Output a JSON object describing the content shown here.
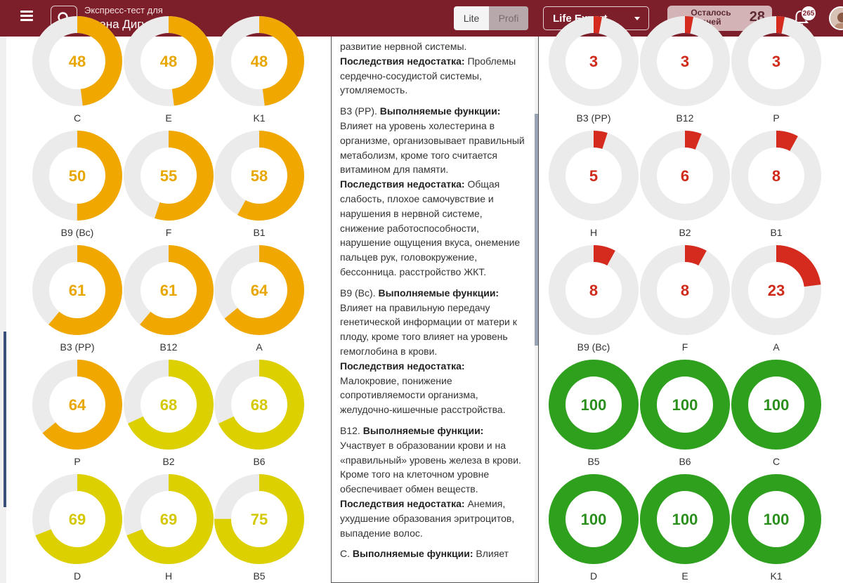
{
  "header": {
    "subtitle": "Экспресс-тест для",
    "user_name": "Елена Дигурова",
    "mode_lite": "Lite",
    "mode_profi": "Profi",
    "plan": "Life Expert",
    "days_label": "Осталось дней",
    "days_value": "28",
    "notifications": "265"
  },
  "left_gauges": [
    {
      "value": 48,
      "label": "C"
    },
    {
      "value": 48,
      "label": "E"
    },
    {
      "value": 48,
      "label": "K1"
    },
    {
      "value": 50,
      "label": "B9 (Bc)"
    },
    {
      "value": 55,
      "label": "F"
    },
    {
      "value": 58,
      "label": "B1"
    },
    {
      "value": 61,
      "label": "B3 (PP)"
    },
    {
      "value": 61,
      "label": "B12"
    },
    {
      "value": 64,
      "label": "A"
    },
    {
      "value": 64,
      "label": "P"
    },
    {
      "value": 68,
      "label": "B2"
    },
    {
      "value": 68,
      "label": "B6"
    },
    {
      "value": 69,
      "label": "D"
    },
    {
      "value": 69,
      "label": "H"
    },
    {
      "value": 75,
      "label": "B5"
    }
  ],
  "right_gauges": [
    {
      "value": 3,
      "label": "B3 (PP)"
    },
    {
      "value": 3,
      "label": "B12"
    },
    {
      "value": 3,
      "label": "P"
    },
    {
      "value": 5,
      "label": "H"
    },
    {
      "value": 6,
      "label": "B2"
    },
    {
      "value": 8,
      "label": "B1"
    },
    {
      "value": 8,
      "label": "B9 (Bc)"
    },
    {
      "value": 8,
      "label": "F"
    },
    {
      "value": 23,
      "label": "A"
    },
    {
      "value": 100,
      "label": "B5"
    },
    {
      "value": 100,
      "label": "B6"
    },
    {
      "value": 100,
      "label": "C"
    },
    {
      "value": 100,
      "label": "D"
    },
    {
      "value": 100,
      "label": "E"
    },
    {
      "value": 100,
      "label": "K1"
    }
  ],
  "colors": {
    "orange": "#f0a800",
    "yellow": "#dcd000",
    "red": "#d52b1e",
    "green": "#2ea01e",
    "track": "#ebebeb",
    "header_bg": "#7d1f2a"
  },
  "text_panel": {
    "p0_tail": "развитие нервной системы.",
    "p0_cons_title": "Последствия недостатка:",
    "p0_cons": " Проблемы сердечно-сосудистой системы, утомляемость.",
    "p1_name": "B3 (PP).",
    "p1_func_title": "Выполняемые функции:",
    "p1_func": "Влияет на уровень холестерина в организме, организовывает правильный метаболизм, кроме того считается витамином для памяти.",
    "p1_cons_title": "Последствия недостатка:",
    "p1_cons": " Общая слабость, плохое самочувствие и нарушения в нервной системе, снижение работоспособности, нарушение ощущения вкуса, онемение пальцев рук, головокружение, бессонница. расстройство ЖКТ.",
    "p2_name": "B9 (Bc).",
    "p2_func_title": "Выполняемые функции:",
    "p2_func": "Влияет на правильную передачу генетической информации от матери к плоду, кроме того влияет на уровень гемоглобина в крови.",
    "p2_cons_title": "Последствия недостатка:",
    "p2_cons": "Малокровие, понижение сопротивляемости организма, желудочно-кишечные расстройства.",
    "p3_name": "B12.",
    "p3_func_title": "Выполняемые функции:",
    "p3_func": "Участвует в образовании крови и на «правильный» уровень железа в крови. Кроме того на клеточном уровне обеспечивает обмен веществ.",
    "p3_cons_title": "Последствия недостатка:",
    "p3_cons": " Анемия, ухудшение образования эритроцитов, выпадение волос.",
    "p4_name": "C.",
    "p4_func_title": "Выполняемые функции:",
    "p4_func": " Влияет"
  }
}
